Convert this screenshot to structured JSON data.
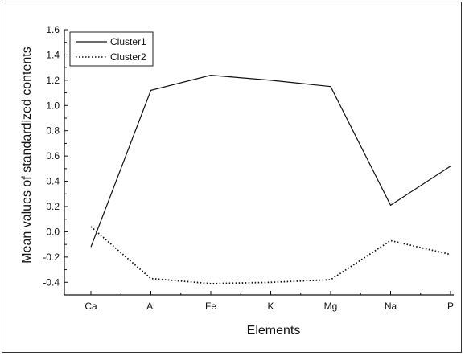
{
  "chart_data": {
    "type": "line",
    "xlabel": "Elements",
    "ylabel": "Mean values of standardized contents",
    "categories": [
      "Ca",
      "Al",
      "Fe",
      "K",
      "Mg",
      "Na",
      "P"
    ],
    "ylim": [
      -0.5,
      1.6
    ],
    "yticks": [
      "1.6",
      "1.4",
      "1.2",
      "1.0",
      "0.8",
      "0.6",
      "0.4",
      "0.2",
      "0.0",
      "-0.2",
      "-0.4"
    ],
    "ytick_values": [
      1.6,
      1.4,
      1.2,
      1.0,
      0.8,
      0.6,
      0.4,
      0.2,
      0.0,
      -0.2,
      -0.4
    ],
    "grid": false,
    "legend_position": "top-left",
    "series": [
      {
        "name": "Cluster1",
        "line_style": "solid",
        "color": "#111111",
        "values": [
          -0.12,
          1.12,
          1.24,
          1.2,
          1.15,
          0.21,
          0.52
        ]
      },
      {
        "name": "Cluster2",
        "line_style": "dotted",
        "color": "#111111",
        "values": [
          0.04,
          -0.37,
          -0.41,
          -0.4,
          -0.38,
          -0.07,
          -0.18
        ]
      }
    ]
  }
}
